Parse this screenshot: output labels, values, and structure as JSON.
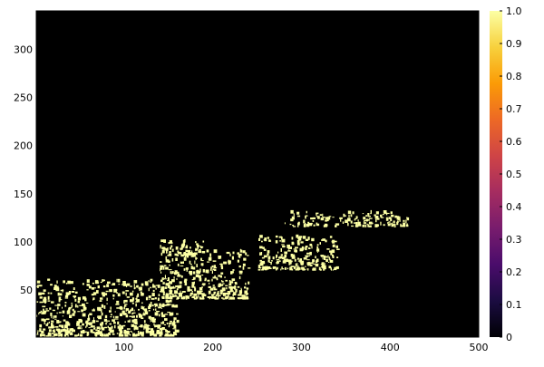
{
  "colors": {
    "background": "#000000",
    "foreground": "#fcffa4",
    "colormap": [
      "#000004",
      "#1b0c41",
      "#4a0c6b",
      "#781c6d",
      "#a52c60",
      "#cf4446",
      "#ed6925",
      "#fb9b06",
      "#f7d13d",
      "#fcffa4"
    ]
  },
  "chart_data": {
    "type": "heatmap",
    "title": "",
    "xlabel": "",
    "ylabel": "",
    "colormap": "inferno",
    "xlim": [
      1,
      500
    ],
    "ylim": [
      1,
      340
    ],
    "clim": [
      0,
      1
    ],
    "x_ticks": [
      100,
      200,
      300,
      400,
      500
    ],
    "y_ticks": [
      50,
      100,
      150,
      200,
      250,
      300
    ],
    "colorbar_ticks": [
      0,
      0.1,
      0.2,
      0.3,
      0.4,
      0.5,
      0.6,
      0.7,
      0.8,
      0.9,
      1.0
    ],
    "colorbar_tick_labels": [
      "0",
      "0.1",
      "0.2",
      "0.3",
      "0.4",
      "0.5",
      "0.6",
      "0.7",
      "0.8",
      "0.9",
      "1.0"
    ],
    "grid": false,
    "legend": "colorbar-right",
    "values_description": "binary mask with value 1 in the bright regions",
    "regions_value_1": [
      {
        "x": [
          1,
          160
        ],
        "y": [
          1,
          60
        ]
      },
      {
        "x": [
          140,
          240
        ],
        "y": [
          40,
          90
        ]
      },
      {
        "x": [
          140,
          190
        ],
        "y": [
          85,
          100
        ]
      },
      {
        "x": [
          250,
          340
        ],
        "y": [
          70,
          105
        ]
      },
      {
        "x": [
          280,
          420
        ],
        "y": [
          115,
          130
        ]
      }
    ]
  }
}
